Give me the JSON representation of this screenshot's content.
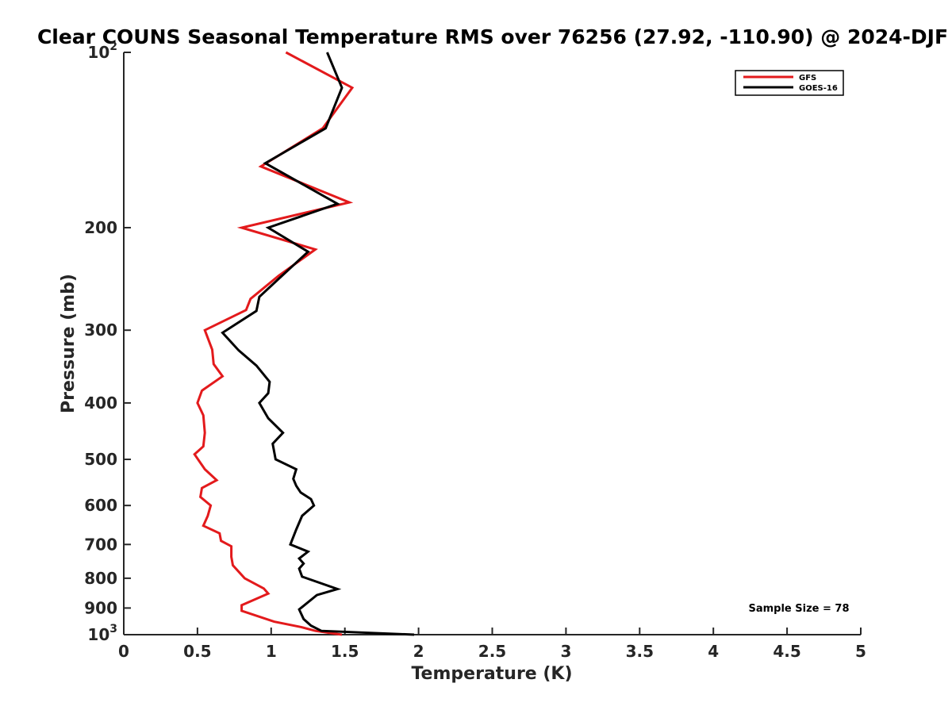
{
  "chart_data": {
    "type": "line",
    "title": "Clear COUNS Seasonal Temperature RMS over 76256 (27.92, -110.90) @ 2024-DJF",
    "xlabel": "Temperature (K)",
    "ylabel": "Pressure (mb)",
    "xlim": [
      0,
      5
    ],
    "ylim": [
      100,
      1000
    ],
    "y_scale": "log",
    "y_reversed": true,
    "xticks": [
      0,
      0.5,
      1,
      1.5,
      2,
      2.5,
      3,
      3.5,
      4,
      4.5,
      5
    ],
    "xtick_labels": [
      "0",
      "0.5",
      "1",
      "1.5",
      "2",
      "2.5",
      "3",
      "3.5",
      "4",
      "4.5",
      "5"
    ],
    "yticks": [
      100,
      200,
      300,
      400,
      500,
      600,
      700,
      800,
      900,
      1000
    ],
    "ytick_labels": [
      {
        "base": "10",
        "exp": "2"
      },
      {
        "base": "200",
        "exp": ""
      },
      {
        "base": "300",
        "exp": ""
      },
      {
        "base": "400",
        "exp": ""
      },
      {
        "base": "500",
        "exp": ""
      },
      {
        "base": "600",
        "exp": ""
      },
      {
        "base": "700",
        "exp": ""
      },
      {
        "base": "800",
        "exp": ""
      },
      {
        "base": "900",
        "exp": ""
      },
      {
        "base": "10",
        "exp": "3"
      }
    ],
    "grid": false,
    "legend_position": "top-right",
    "annotation": "Sample Size = 78",
    "series": [
      {
        "name": "GFS",
        "color": "#e31a1c",
        "points": [
          [
            1.1,
            100
          ],
          [
            1.55,
            115
          ],
          [
            1.35,
            135
          ],
          [
            0.93,
            157
          ],
          [
            1.53,
            181
          ],
          [
            0.8,
            200
          ],
          [
            1.3,
            218
          ],
          [
            1.05,
            242
          ],
          [
            0.86,
            265
          ],
          [
            0.83,
            277
          ],
          [
            0.55,
            300
          ],
          [
            0.6,
            324
          ],
          [
            0.61,
            343
          ],
          [
            0.67,
            360
          ],
          [
            0.53,
            381
          ],
          [
            0.5,
            400
          ],
          [
            0.54,
            420
          ],
          [
            0.55,
            450
          ],
          [
            0.54,
            475
          ],
          [
            0.48,
            490
          ],
          [
            0.55,
            520
          ],
          [
            0.63,
            543
          ],
          [
            0.53,
            560
          ],
          [
            0.52,
            580
          ],
          [
            0.59,
            600
          ],
          [
            0.57,
            625
          ],
          [
            0.54,
            650
          ],
          [
            0.65,
            670
          ],
          [
            0.66,
            690
          ],
          [
            0.73,
            705
          ],
          [
            0.73,
            735
          ],
          [
            0.74,
            760
          ],
          [
            0.82,
            800
          ],
          [
            0.95,
            833
          ],
          [
            0.98,
            850
          ],
          [
            0.8,
            890
          ],
          [
            0.8,
            910
          ],
          [
            1.02,
            950
          ],
          [
            1.2,
            970
          ],
          [
            1.3,
            985
          ],
          [
            1.48,
            1000
          ]
        ]
      },
      {
        "name": "GOES-16",
        "color": "#000000",
        "points": [
          [
            1.38,
            100
          ],
          [
            1.48,
            115
          ],
          [
            1.37,
            135
          ],
          [
            0.96,
            155
          ],
          [
            1.45,
            182
          ],
          [
            0.98,
            200
          ],
          [
            1.25,
            220
          ],
          [
            1.05,
            245
          ],
          [
            0.92,
            263
          ],
          [
            0.9,
            278
          ],
          [
            0.67,
            303
          ],
          [
            0.78,
            325
          ],
          [
            0.9,
            345
          ],
          [
            0.99,
            368
          ],
          [
            0.98,
            385
          ],
          [
            0.92,
            400
          ],
          [
            0.98,
            425
          ],
          [
            1.08,
            450
          ],
          [
            1.01,
            470
          ],
          [
            1.03,
            500
          ],
          [
            1.17,
            520
          ],
          [
            1.15,
            540
          ],
          [
            1.17,
            555
          ],
          [
            1.2,
            570
          ],
          [
            1.27,
            585
          ],
          [
            1.29,
            600
          ],
          [
            1.21,
            625
          ],
          [
            1.17,
            660
          ],
          [
            1.13,
            700
          ],
          [
            1.25,
            720
          ],
          [
            1.19,
            740
          ],
          [
            1.22,
            755
          ],
          [
            1.19,
            770
          ],
          [
            1.21,
            795
          ],
          [
            1.45,
            835
          ],
          [
            1.31,
            855
          ],
          [
            1.19,
            905
          ],
          [
            1.22,
            940
          ],
          [
            1.27,
            965
          ],
          [
            1.34,
            985
          ],
          [
            1.97,
            1000
          ]
        ]
      }
    ]
  }
}
